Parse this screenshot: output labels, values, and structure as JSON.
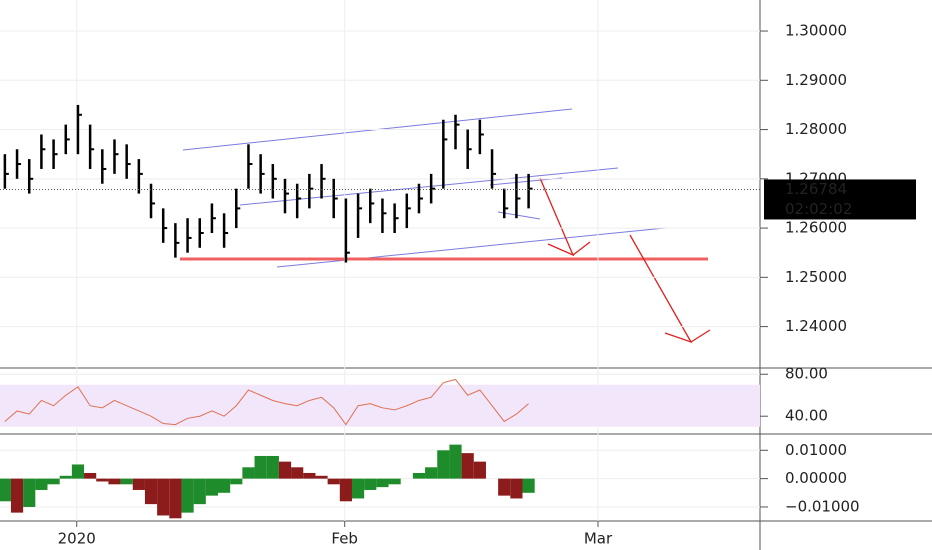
{
  "chart_data": [
    {
      "type": "ohlc",
      "xlim": [
        -0.4,
        62
      ],
      "ylim": [
        1.232,
        1.3063
      ],
      "xticks": [
        {
          "value": 5.9,
          "label": "2020"
        },
        {
          "value": 27.9,
          "label": "Feb"
        },
        {
          "value": 48.7,
          "label": "Mar"
        }
      ],
      "yticks": [
        {
          "value": 1.3,
          "label": "1.30000"
        },
        {
          "value": 1.29,
          "label": "1.29000"
        },
        {
          "value": 1.28,
          "label": "1.28000"
        },
        {
          "value": 1.27,
          "label": "1.27000"
        },
        {
          "value": 1.26,
          "label": "1.26000"
        },
        {
          "value": 1.25,
          "label": "1.25000"
        },
        {
          "value": 1.24,
          "label": "1.24000"
        }
      ],
      "color": "#000000",
      "high": [
        1.275,
        1.276,
        1.274,
        1.279,
        1.278,
        1.281,
        1.285,
        1.281,
        1.276,
        1.278,
        1.277,
        1.274,
        1.269,
        1.264,
        1.261,
        1.262,
        1.262,
        1.265,
        1.263,
        1.268,
        1.277,
        1.275,
        1.273,
        1.27,
        1.269,
        1.271,
        1.273,
        1.27,
        1.266,
        1.267,
        1.268,
        1.266,
        1.265,
        1.267,
        1.269,
        1.271,
        1.282,
        1.283,
        1.28,
        1.282,
        1.276,
        1.268,
        1.271,
        1.271
      ],
      "low": [
        1.268,
        1.27,
        1.267,
        1.272,
        1.272,
        1.275,
        1.275,
        1.272,
        1.269,
        1.271,
        1.27,
        1.267,
        1.262,
        1.257,
        1.254,
        1.255,
        1.256,
        1.259,
        1.256,
        1.26,
        1.268,
        1.267,
        1.266,
        1.263,
        1.262,
        1.264,
        1.266,
        1.262,
        1.253,
        1.258,
        1.261,
        1.259,
        1.259,
        1.26,
        1.263,
        1.265,
        1.268,
        1.276,
        1.272,
        1.275,
        1.268,
        1.262,
        1.262,
        1.264
      ],
      "close": [
        1.271,
        1.273,
        1.27,
        1.276,
        1.275,
        1.278,
        1.283,
        1.276,
        1.272,
        1.275,
        1.273,
        1.271,
        1.265,
        1.26,
        1.257,
        1.258,
        1.259,
        1.262,
        1.259,
        1.264,
        1.273,
        1.271,
        1.27,
        1.267,
        1.266,
        1.268,
        1.27,
        1.266,
        1.255,
        1.264,
        1.265,
        1.263,
        1.262,
        1.264,
        1.266,
        1.268,
        1.278,
        1.281,
        1.276,
        1.279,
        1.271,
        1.264,
        1.266,
        1.268
      ],
      "last_price": {
        "value": 1.26784,
        "label": "1.26784"
      },
      "countdown": "02:02:02"
    },
    {
      "type": "line",
      "name": "rsi",
      "xlim": [
        -0.4,
        62
      ],
      "ylim": [
        24,
        85
      ],
      "color": "#e07050",
      "yticks": [
        {
          "value": 80,
          "label": "80.00"
        },
        {
          "value": 40,
          "label": "40.00"
        }
      ],
      "band": [
        30,
        70
      ],
      "values": [
        35,
        45,
        42,
        55,
        50,
        60,
        68,
        50,
        48,
        55,
        50,
        45,
        40,
        33,
        32,
        38,
        40,
        45,
        40,
        50,
        65,
        60,
        55,
        52,
        50,
        55,
        58,
        48,
        32,
        50,
        52,
        48,
        46,
        50,
        55,
        58,
        72,
        75,
        60,
        65,
        50,
        35,
        42,
        52
      ]
    },
    {
      "type": "histogram",
      "name": "macd",
      "xlim": [
        -0.4,
        62
      ],
      "ylim": [
        -0.0146,
        0.0154
      ],
      "up_color": "#1e8c2a",
      "down_color": "#8c1c1c",
      "yticks": [
        {
          "value": 0.01,
          "label": "0.01000"
        },
        {
          "value": 0,
          "label": "0.00000"
        },
        {
          "value": -0.01,
          "label": "−0.01000"
        }
      ],
      "values": [
        -0.008,
        -0.012,
        -0.01,
        -0.004,
        -0.002,
        0.001,
        0.005,
        0.002,
        -0.001,
        -0.002,
        -0.002,
        -0.004,
        -0.009,
        -0.013,
        -0.014,
        -0.012,
        -0.009,
        -0.006,
        -0.005,
        -0.002,
        0.004,
        0.008,
        0.008,
        0.006,
        0.004,
        0.002,
        0.001,
        -0.002,
        -0.008,
        -0.007,
        -0.004,
        -0.003,
        -0.002,
        0.0,
        0.002,
        0.004,
        0.01,
        0.012,
        0.009,
        0.006,
        0.0,
        -0.006,
        -0.007,
        -0.005
      ]
    }
  ]
}
